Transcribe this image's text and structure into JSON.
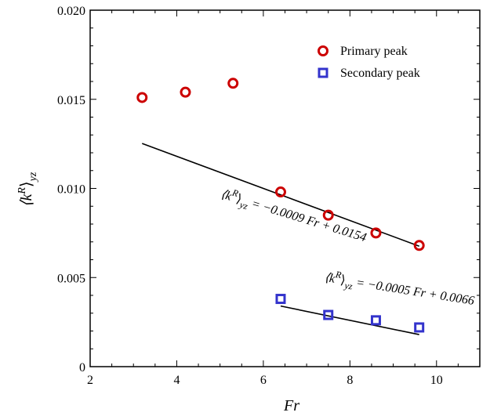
{
  "chart_data": {
    "type": "scatter",
    "xlabel": "Fr",
    "ylabel_main": "⟨k",
    "ylabel_sup": "R",
    "ylabel_close": "⟩",
    "ylabel_sub": "yz",
    "xlim": [
      2,
      11
    ],
    "ylim": [
      0,
      0.02
    ],
    "xticks": [
      2,
      4,
      6,
      8,
      10
    ],
    "xtick_labels": [
      "2",
      "4",
      "6",
      "8",
      "10"
    ],
    "yticks": [
      0,
      0.005,
      0.01,
      0.015,
      0.02
    ],
    "ytick_labels": [
      "0",
      "0.005",
      "0.010",
      "0.015",
      "0.020"
    ],
    "grid": false,
    "legend_position": "top-right",
    "series": [
      {
        "name": "Primary peak",
        "marker": "circle",
        "color": "#cc0000",
        "x": [
          3.2,
          4.2,
          5.3,
          6.4,
          7.5,
          8.6,
          9.6
        ],
        "y": [
          0.0151,
          0.0154,
          0.0159,
          0.0098,
          0.0085,
          0.0075,
          0.0068
        ]
      },
      {
        "name": "Secondary peak",
        "marker": "square",
        "color": "#3333cc",
        "x": [
          6.4,
          7.5,
          8.6,
          9.6
        ],
        "y": [
          0.0038,
          0.0029,
          0.0026,
          0.0022
        ]
      }
    ],
    "fits": [
      {
        "x_range": [
          3.2,
          9.6
        ],
        "slope": -0.0009,
        "intercept": 0.0154,
        "label_eq": "= −0.0009 Fr + 0.0154",
        "label_x": 5.0,
        "label_y": 0.0095,
        "angle": 17
      },
      {
        "x_range": [
          6.4,
          9.6
        ],
        "slope": -0.0005,
        "intercept": 0.0066,
        "label_eq": "= −0.0005 Fr + 0.0066",
        "label_x": 7.4,
        "label_y": 0.0048,
        "angle": 9
      }
    ],
    "annotation_prefix": "⟨k",
    "annotation_sup": "R",
    "annotation_close": "⟩",
    "annotation_sub": "yz"
  }
}
